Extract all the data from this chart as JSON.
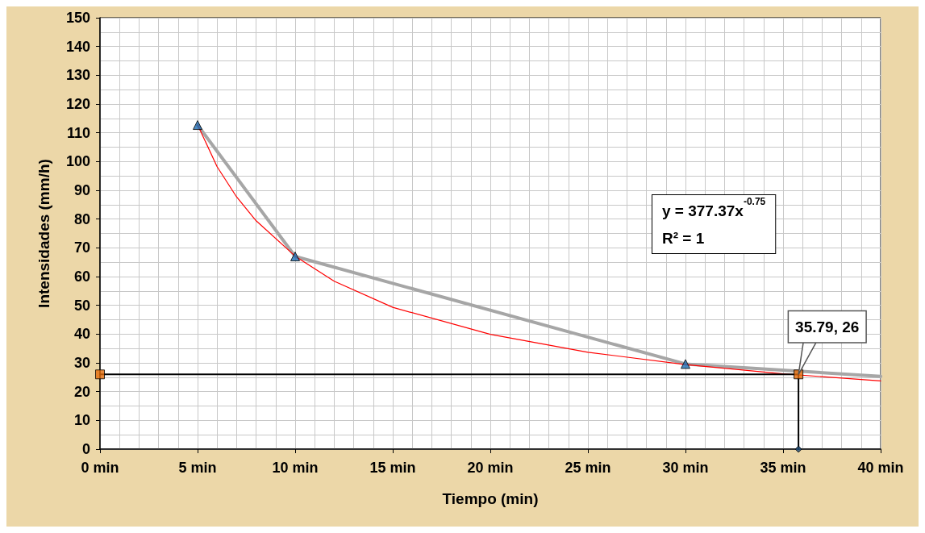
{
  "chart_data": {
    "type": "line",
    "xlabel": "Tiempo (min)",
    "ylabel": "Intensidades (mm/h)",
    "xlim": [
      0,
      40
    ],
    "xticks": [
      {
        "value": 0,
        "label": "0 min"
      },
      {
        "value": 5,
        "label": "5 min"
      },
      {
        "value": 10,
        "label": "10 min"
      },
      {
        "value": 15,
        "label": "15 min"
      },
      {
        "value": 20,
        "label": "20 min"
      },
      {
        "value": 25,
        "label": "25 min"
      },
      {
        "value": 30,
        "label": "30 min"
      },
      {
        "value": 35,
        "label": "35 min"
      },
      {
        "value": 40,
        "label": "40 min"
      }
    ],
    "ylim": [
      0,
      150
    ],
    "yticks": [
      0,
      10,
      20,
      30,
      40,
      50,
      60,
      70,
      80,
      90,
      100,
      110,
      120,
      130,
      140,
      150
    ],
    "grid": true,
    "series": [
      {
        "color": "#a6a6a6",
        "marker": "none",
        "x": [
          5,
          10,
          30,
          40
        ],
        "values": [
          112.7,
          67,
          29.6,
          25.3
        ]
      },
      {
        "color": "#ff0000",
        "marker": "none",
        "x": [
          5,
          6,
          7,
          8,
          10,
          12,
          15,
          20,
          25,
          30,
          35,
          40
        ],
        "values": [
          112.8,
          98.2,
          87.7,
          79.4,
          67.1,
          58.4,
          49.3,
          39.9,
          33.7,
          29.4,
          26.2,
          23.7
        ]
      },
      {
        "color": "#000000",
        "marker": "none",
        "x": [
          0,
          35.79,
          35.79
        ],
        "values": [
          26,
          26,
          0
        ]
      },
      {
        "type": "scatter",
        "color": "#1f6fb5",
        "marker": "triangle",
        "x": [
          5,
          10,
          30
        ],
        "values": [
          112.7,
          67,
          29.6
        ]
      },
      {
        "type": "scatter",
        "color": "#e36c0a",
        "marker": "square",
        "x": [
          0,
          35.79
        ],
        "values": [
          26,
          26
        ]
      },
      {
        "type": "scatter",
        "color": "#1f4e79",
        "marker": "diamond",
        "x": [
          35.79
        ],
        "values": [
          0
        ]
      }
    ],
    "annotations": [
      "y = 377.37x$^{-0.75}$\nR² = 1",
      {
        "text": "35.79, 26",
        "x": 35.79,
        "y": 26
      }
    ]
  }
}
